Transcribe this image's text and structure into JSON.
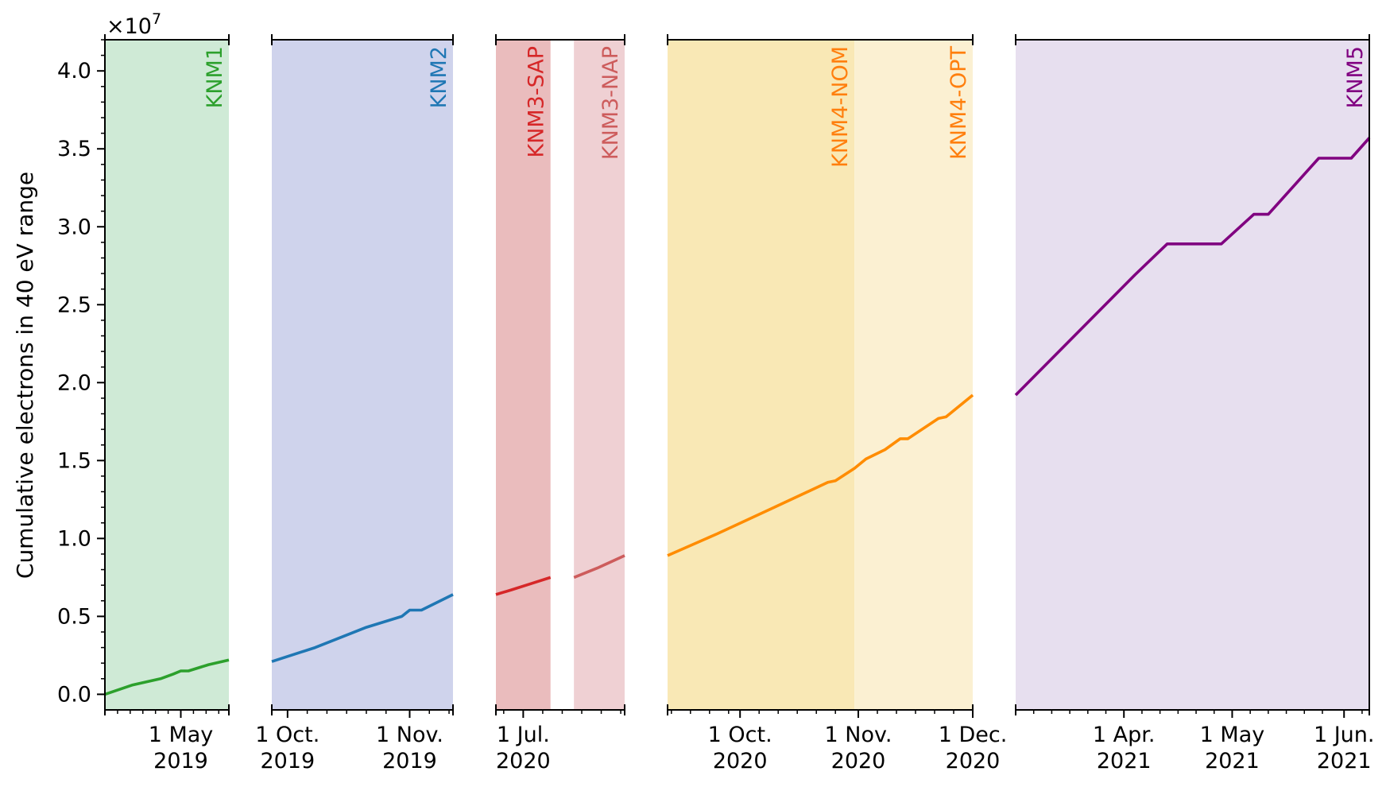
{
  "chart_data": {
    "type": "line",
    "ylabel": "Cumulative electrons in 40 eV range",
    "y_scale_factor_label": "×10",
    "y_scale_factor_exponent": "7",
    "ylim": [
      -0.1,
      4.2
    ],
    "y_unit_multiplier": 10000000,
    "y_ticks": [
      0.0,
      0.5,
      1.0,
      1.5,
      2.0,
      2.5,
      3.0,
      3.5,
      4.0
    ],
    "y_tick_labels": [
      "0.0",
      "0.5",
      "1.0",
      "1.5",
      "2.0",
      "2.5",
      "3.0",
      "3.5",
      "4.0"
    ],
    "grid": false,
    "panels": [
      {
        "xlim": [
          "2019-04-01",
          "2019-05-20"
        ],
        "minor_ticks": [
          "2019-04-06",
          "2019-04-11",
          "2019-04-16",
          "2019-04-21",
          "2019-04-26",
          "2019-05-06",
          "2019-05-11",
          "2019-05-16"
        ],
        "ticks": [
          {
            "date": "2019-05-01",
            "line1": "1 May",
            "line2": "2019"
          }
        ],
        "bands": [
          {
            "start": "2019-04-01",
            "end": "2019-05-20",
            "color": "#cfead6"
          }
        ],
        "labels": [
          {
            "text": "KNM1",
            "at": "2019-05-20",
            "color": "#2ca02c"
          }
        ],
        "series": [
          {
            "color": "#2ca02c",
            "x": [
              "2019-04-01",
              "2019-04-12",
              "2019-04-23",
              "2019-04-28",
              "2019-05-01",
              "2019-05-04",
              "2019-05-12",
              "2019-05-20"
            ],
            "y": [
              0.0,
              0.06,
              0.1,
              0.13,
              0.15,
              0.15,
              0.19,
              0.22
            ]
          }
        ]
      },
      {
        "xlim": [
          "2019-09-27",
          "2019-11-12"
        ],
        "minor_ticks": [
          "2019-10-06",
          "2019-10-11",
          "2019-10-16",
          "2019-10-21",
          "2019-10-26",
          "2019-11-06",
          "2019-11-11"
        ],
        "ticks": [
          {
            "date": "2019-10-01",
            "line1": "1 Oct.",
            "line2": "2019"
          },
          {
            "date": "2019-11-01",
            "line1": "1 Nov.",
            "line2": "2019"
          }
        ],
        "bands": [
          {
            "start": "2019-09-27",
            "end": "2019-11-12",
            "color": "#cfd3ec"
          }
        ],
        "labels": [
          {
            "text": "KNM2",
            "at": "2019-11-12",
            "color": "#1f77b4"
          }
        ],
        "series": [
          {
            "color": "#1f77b4",
            "x": [
              "2019-09-27",
              "2019-10-08",
              "2019-10-17",
              "2019-10-21",
              "2019-10-30",
              "2019-11-01",
              "2019-11-04",
              "2019-11-12"
            ],
            "y": [
              0.21,
              0.3,
              0.39,
              0.43,
              0.5,
              0.54,
              0.54,
              0.64
            ]
          }
        ]
      },
      {
        "xlim": [
          "2020-06-24",
          "2020-07-27"
        ],
        "minor_ticks": [
          "2020-06-26",
          "2020-07-06",
          "2020-07-11",
          "2020-07-16",
          "2020-07-21",
          "2020-07-26"
        ],
        "ticks": [
          {
            "date": "2020-07-01",
            "line1": "1 Jul.",
            "line2": "2020"
          }
        ],
        "bands": [
          {
            "start": "2020-06-24",
            "end": "2020-07-08",
            "color": "#eabcbd"
          },
          {
            "start": "2020-07-14",
            "end": "2020-07-27",
            "color": "#efd0d3"
          }
        ],
        "labels": [
          {
            "text": "KNM3-SAP",
            "at": "2020-07-08",
            "color": "#d62728"
          },
          {
            "text": "KNM3-NAP",
            "at": "2020-07-27",
            "color": "#cd5c5c"
          }
        ],
        "series": [
          {
            "color": "#d62728",
            "x": [
              "2020-06-24",
              "2020-06-28",
              "2020-07-03",
              "2020-07-08"
            ],
            "y": [
              0.64,
              0.67,
              0.71,
              0.75
            ]
          },
          {
            "color": "#cd5c5c",
            "x": [
              "2020-07-14",
              "2020-07-20",
              "2020-07-27"
            ],
            "y": [
              0.75,
              0.81,
              0.89
            ]
          }
        ]
      },
      {
        "xlim": [
          "2020-09-12",
          "2020-12-01"
        ],
        "minor_ticks": [
          "2020-09-13",
          "2020-09-18",
          "2020-09-23",
          "2020-09-28",
          "2020-10-06",
          "2020-10-11",
          "2020-10-16",
          "2020-10-21",
          "2020-10-26",
          "2020-11-06",
          "2020-11-11",
          "2020-11-16",
          "2020-11-21",
          "2020-11-26"
        ],
        "ticks": [
          {
            "date": "2020-10-01",
            "line1": "1 Oct.",
            "line2": "2020"
          },
          {
            "date": "2020-11-01",
            "line1": "1 Nov.",
            "line2": "2020"
          },
          {
            "date": "2020-12-01",
            "line1": "1 Dec.",
            "line2": "2020"
          }
        ],
        "bands": [
          {
            "start": "2020-09-12",
            "end": "2020-10-31",
            "color": "#f9e8b5"
          },
          {
            "start": "2020-10-31",
            "end": "2020-12-01",
            "color": "#fbf0d2"
          }
        ],
        "labels": [
          {
            "text": "KNM4-NOM",
            "at": "2020-10-31",
            "color": "#ff7f0e"
          },
          {
            "text": "KNM4-OPT",
            "at": "2020-12-01",
            "color": "#ff7f0e"
          }
        ],
        "series": [
          {
            "color": "#ff8c00",
            "x": [
              "2020-09-12",
              "2020-09-25",
              "2020-10-10",
              "2020-10-24",
              "2020-10-26",
              "2020-10-31",
              "2020-11-03",
              "2020-11-08",
              "2020-11-12",
              "2020-11-14",
              "2020-11-22",
              "2020-11-24",
              "2020-12-01"
            ],
            "y": [
              0.89,
              1.03,
              1.2,
              1.36,
              1.37,
              1.45,
              1.51,
              1.57,
              1.64,
              1.64,
              1.77,
              1.78,
              1.92
            ]
          }
        ]
      },
      {
        "xlim": [
          "2021-03-02",
          "2021-06-08"
        ],
        "minor_ticks": [
          "2021-03-07",
          "2021-03-12",
          "2021-03-17",
          "2021-03-22",
          "2021-03-27",
          "2021-04-06",
          "2021-04-11",
          "2021-04-16",
          "2021-04-21",
          "2021-04-26",
          "2021-05-06",
          "2021-05-11",
          "2021-05-16",
          "2021-05-21",
          "2021-05-26",
          "2021-06-06"
        ],
        "ticks": [
          {
            "date": "2021-04-01",
            "line1": "1 Apr.",
            "line2": "2021"
          },
          {
            "date": "2021-05-01",
            "line1": "1 May",
            "line2": "2021"
          },
          {
            "date": "2021-06-01",
            "line1": "1 Jun.",
            "line2": "2021"
          }
        ],
        "bands": [
          {
            "start": "2021-03-02",
            "end": "2021-06-08",
            "color": "#e7dfef"
          }
        ],
        "labels": [
          {
            "text": "KNM5",
            "at": "2021-06-08",
            "color": "#800080"
          }
        ],
        "series": [
          {
            "color": "#800080",
            "x": [
              "2021-03-02",
              "2021-04-04",
              "2021-04-13",
              "2021-04-28",
              "2021-05-07",
              "2021-05-11",
              "2021-05-25",
              "2021-05-27",
              "2021-06-03",
              "2021-06-08"
            ],
            "y": [
              1.92,
              2.69,
              2.89,
              2.89,
              3.08,
              3.08,
              3.44,
              3.44,
              3.44,
              3.57
            ]
          }
        ]
      }
    ]
  }
}
